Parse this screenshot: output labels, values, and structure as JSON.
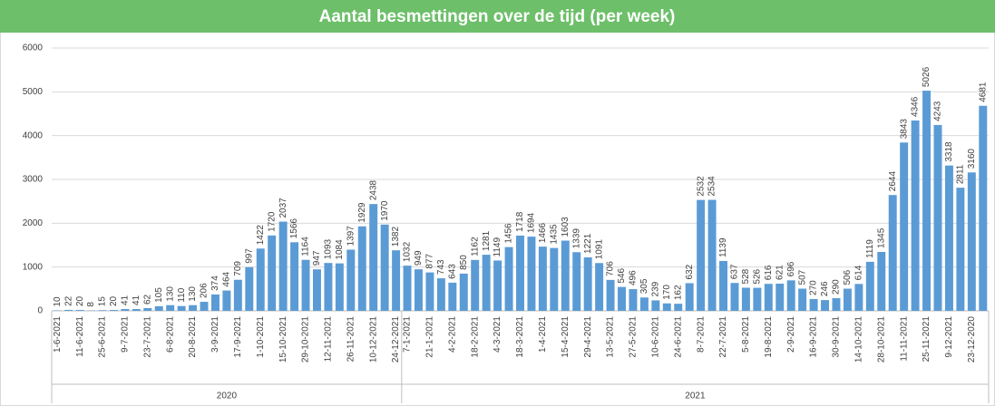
{
  "chart_data": {
    "type": "bar",
    "title": "Aantal besmettingen over de tijd (per week)",
    "color": "#5b9bd5",
    "ylim": [
      0,
      6000
    ],
    "yticks": [
      0,
      1000,
      2000,
      3000,
      4000,
      5000,
      6000
    ],
    "grid": true,
    "groups": [
      {
        "name": "2020",
        "categories": [
          "1-6-2021",
          null,
          "11-6-2021",
          null,
          "25-6-2021",
          null,
          "9-7-2021",
          null,
          "23-7-2021",
          null,
          "6-8-2021",
          null,
          "20-8-2021",
          null,
          "3-9-2021",
          null,
          "17-9-2021",
          null,
          "1-10-2021",
          null,
          "15-10-2021",
          null,
          "29-10-2021",
          null,
          "12-11-2021",
          null,
          "26-11-2021",
          null,
          "10-12-2021",
          null,
          "24-12-2021"
        ],
        "values": [
          10,
          22,
          20,
          8,
          15,
          20,
          41,
          41,
          62,
          105,
          130,
          110,
          130,
          206,
          374,
          464,
          709,
          997,
          1422,
          1720,
          2037,
          1566,
          1164,
          947,
          1093,
          1084,
          1397,
          1929,
          2438,
          1970,
          1382
        ]
      },
      {
        "name": "2021",
        "categories": [
          "7-1-2021",
          null,
          "21-1-2021",
          null,
          "4-2-2021",
          null,
          "18-2-2021",
          null,
          "4-3-2021",
          null,
          "18-3-2021",
          null,
          "1-4-2021",
          null,
          "15-4-2021",
          null,
          "29-4-2021",
          null,
          "13-5-2021",
          null,
          "27-5-2021",
          null,
          "10-6-2021",
          null,
          "24-6-2021",
          null,
          "8-7-2021",
          null,
          "22-7-2021",
          null,
          "5-8-2021",
          null,
          "19-8-2021",
          null,
          "2-9-2021",
          null,
          "16-9-2021",
          null,
          "30-9-2021",
          null,
          "14-10-2021",
          null,
          "28-10-2021",
          null,
          "11-11-2021",
          null,
          "25-11-2021",
          null,
          "9-12-2021",
          null,
          "23-12-2020",
          null
        ],
        "values": [
          1032,
          949,
          877,
          743,
          643,
          850,
          1162,
          1281,
          1149,
          1456,
          1718,
          1694,
          1466,
          1435,
          1603,
          1339,
          1221,
          1091,
          706,
          546,
          496,
          305,
          239,
          170,
          162,
          632,
          2532,
          2534,
          1139,
          637,
          528,
          526,
          616,
          621,
          696,
          507,
          270,
          246,
          290,
          506,
          614,
          1119,
          1345,
          2644,
          3843,
          4346,
          5026,
          4243,
          3318,
          2811,
          3160,
          4681
        ]
      }
    ]
  }
}
